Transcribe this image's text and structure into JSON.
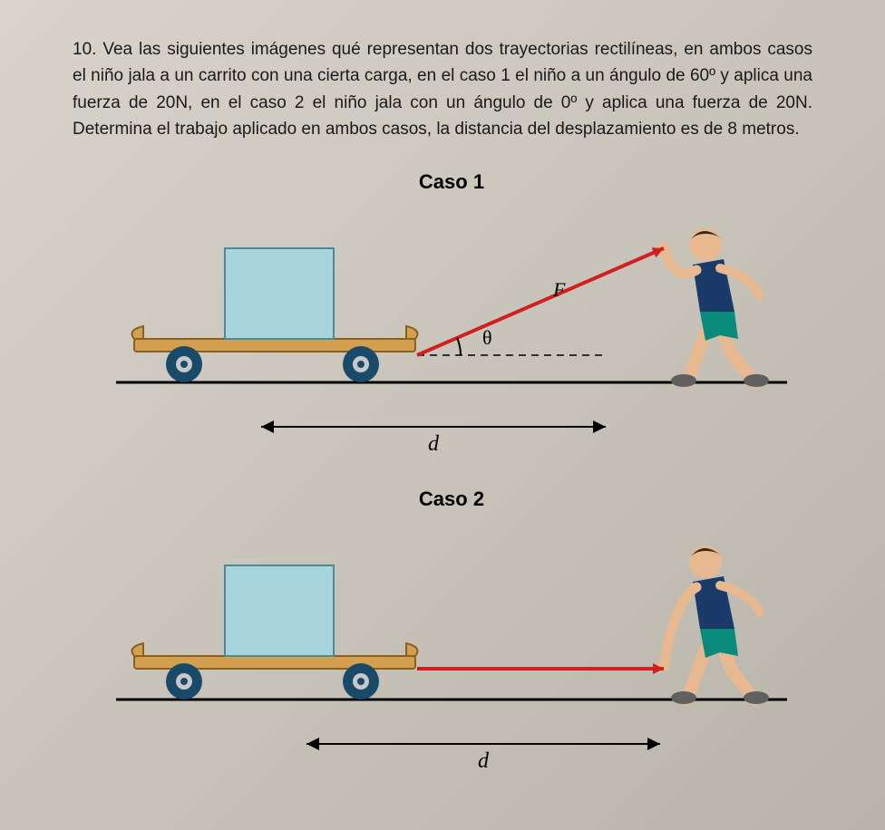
{
  "problem": {
    "number": "10.",
    "text": "Vea las siguientes imágenes qué representan dos trayectorias rectilíneas, en ambos casos el niño jala a un carrito con una cierta carga, en el caso 1 el niño a un ángulo de 60º y aplica una fuerza de 20N, en el caso 2 el niño jala con un ángulo de 0º y aplica una fuerza de 20N. Determina el trabajo aplicado en ambos casos, la distancia del desplazamiento es de 8 metros."
  },
  "case1": {
    "label": "Caso 1",
    "force_symbol": "F⃗",
    "angle_symbol": "θ",
    "distance_symbol": "d",
    "angle_deg": 60,
    "colors": {
      "cart_board": "#d4a050",
      "cart_board_edge": "#8a6020",
      "wheel_outer": "#1a4a6a",
      "wheel_inner": "#c8c8c8",
      "cargo_fill": "#a8d4dc",
      "cargo_stroke": "#4a8a9a",
      "rope": "#d02020",
      "ground": "#000000",
      "dash": "#303030",
      "boy_skin": "#e8b890",
      "boy_shirt": "#1a3a6a",
      "boy_shorts": "#0a8a7a",
      "boy_shoe": "#606060",
      "boy_hair": "#3a2a1a"
    }
  },
  "case2": {
    "label": "Caso 2",
    "distance_symbol": "d",
    "colors": {
      "cart_board": "#d4a050",
      "cart_board_edge": "#8a6020",
      "wheel_outer": "#1a4a6a",
      "wheel_inner": "#c8c8c8",
      "cargo_fill": "#a8d4dc",
      "cargo_stroke": "#4a8a9a",
      "rope": "#d02020",
      "ground": "#000000",
      "boy_skin": "#e8b890",
      "boy_shirt": "#1a3a6a",
      "boy_shorts": "#0a8a7a",
      "boy_shoe": "#606060",
      "boy_hair": "#3a2a1a"
    }
  },
  "svg": {
    "viewbox_w": 780,
    "diagram_h": 220,
    "darrow_h": 50
  }
}
